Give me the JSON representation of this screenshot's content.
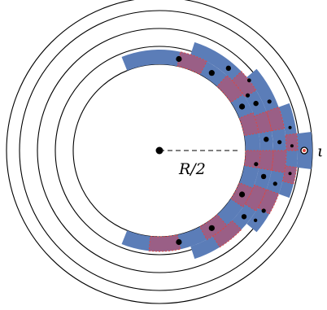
{
  "figure": {
    "center_label": "R/2",
    "point_label": "ι",
    "colors": {
      "circle_stroke": "#000000",
      "band_fill": "#5b7db8",
      "cell_fill": "#9a5f86",
      "cell_stroke": "#e0453e",
      "dot_fill": "#000000",
      "target_dot_fill": "#e0453e"
    }
  }
}
